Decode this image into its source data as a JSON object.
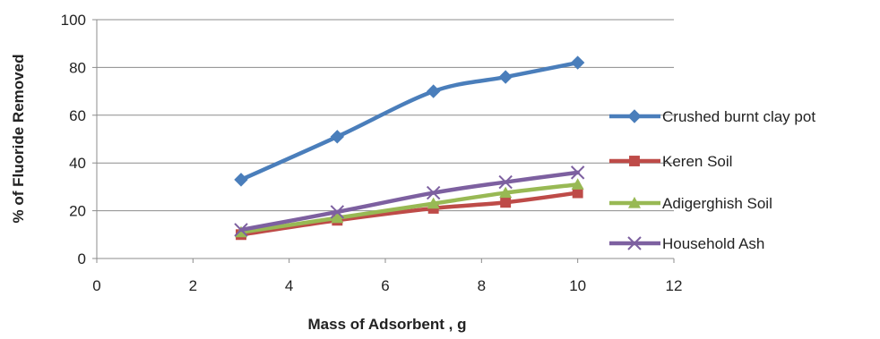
{
  "chart_data": {
    "type": "line",
    "title": "",
    "xlabel": "Mass of Adsorbent , g",
    "ylabel": "% of Fluoride Removed",
    "xlim": [
      0,
      12
    ],
    "ylim": [
      0,
      100
    ],
    "xticks": [
      0,
      2,
      4,
      6,
      8,
      10,
      12
    ],
    "yticks": [
      0,
      20,
      40,
      60,
      80,
      100
    ],
    "grid": "horizontal",
    "legend_position": "right",
    "x": [
      3,
      5,
      7,
      8.5,
      10
    ],
    "series": [
      {
        "name": "Crushed burnt clay pot",
        "color": "#4a7ebb",
        "marker": "diamond",
        "values": [
          33,
          51,
          70,
          76,
          82
        ]
      },
      {
        "name": "Keren Soil",
        "color": "#be4b48",
        "marker": "square",
        "values": [
          10,
          16,
          21,
          23.5,
          27.5
        ]
      },
      {
        "name": "Adigerghish Soil",
        "color": "#98b954",
        "marker": "triangle",
        "values": [
          11,
          17,
          23,
          27.5,
          31
        ]
      },
      {
        "name": "Household Ash",
        "color": "#7d60a0",
        "marker": "x",
        "values": [
          12,
          19.5,
          27.5,
          32,
          36
        ]
      }
    ]
  }
}
